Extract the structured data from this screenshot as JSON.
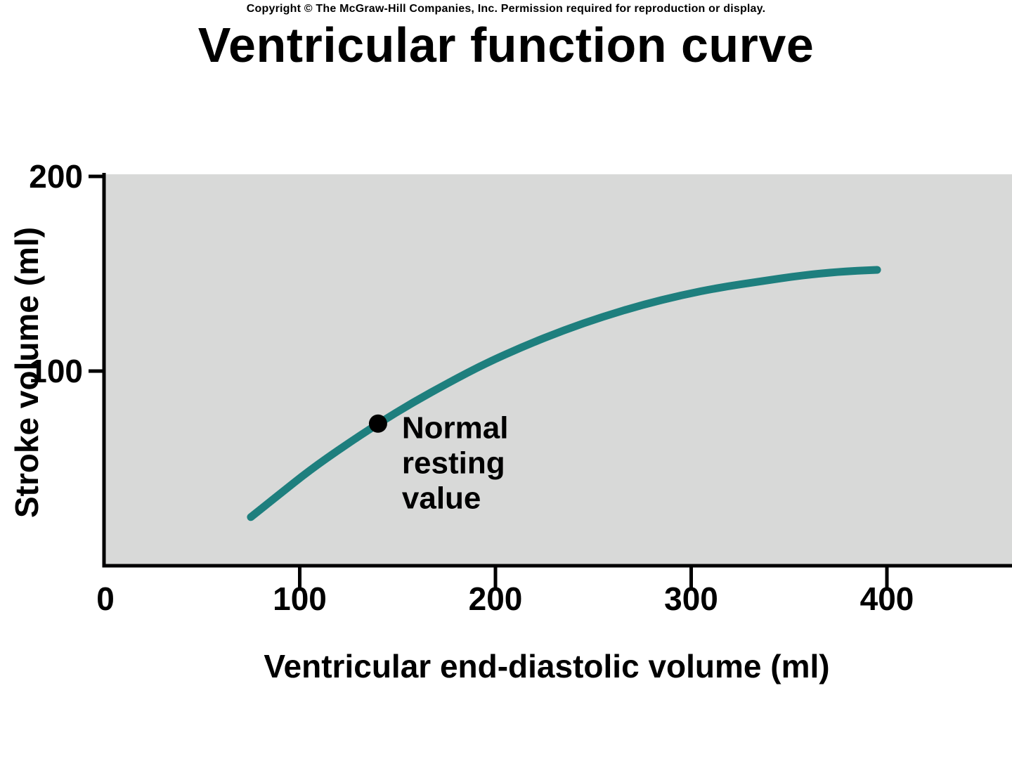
{
  "page": {
    "copyright": "Copyright © The McGraw-Hill Companies, Inc. Permission required for reproduction or display.",
    "title": "Ventricular function curve"
  },
  "chart_data": {
    "type": "line",
    "title": "Ventricular function curve",
    "xlabel": "Ventricular end-diastolic volume (ml)",
    "ylabel": "Stroke volume (ml)",
    "xlim": [
      0,
      460
    ],
    "ylim": [
      0,
      200
    ],
    "x_ticks": [
      0,
      100,
      200,
      300,
      400
    ],
    "y_ticks": [
      100,
      200
    ],
    "grid": false,
    "legend": "none",
    "plot_bg": "#d8d9d8",
    "axis_color": "#000000",
    "series": [
      {
        "name": "ventricular-function-curve",
        "color": "#1e7f7e",
        "points": [
          [
            75,
            25
          ],
          [
            90,
            37
          ],
          [
            105,
            49
          ],
          [
            122,
            61
          ],
          [
            140,
            73
          ],
          [
            158,
            84
          ],
          [
            176,
            94
          ],
          [
            195,
            104
          ],
          [
            215,
            113
          ],
          [
            235,
            121
          ],
          [
            255,
            128
          ],
          [
            275,
            134
          ],
          [
            295,
            139
          ],
          [
            315,
            143
          ],
          [
            335,
            146
          ],
          [
            355,
            149
          ],
          [
            375,
            151
          ],
          [
            395,
            152
          ]
        ]
      }
    ],
    "annotation": {
      "label": "Normal resting value",
      "label_lines": [
        "Normal",
        "resting",
        "value"
      ],
      "x": 140,
      "y": 73,
      "marker": "filled-circle",
      "marker_color": "#000000"
    }
  }
}
